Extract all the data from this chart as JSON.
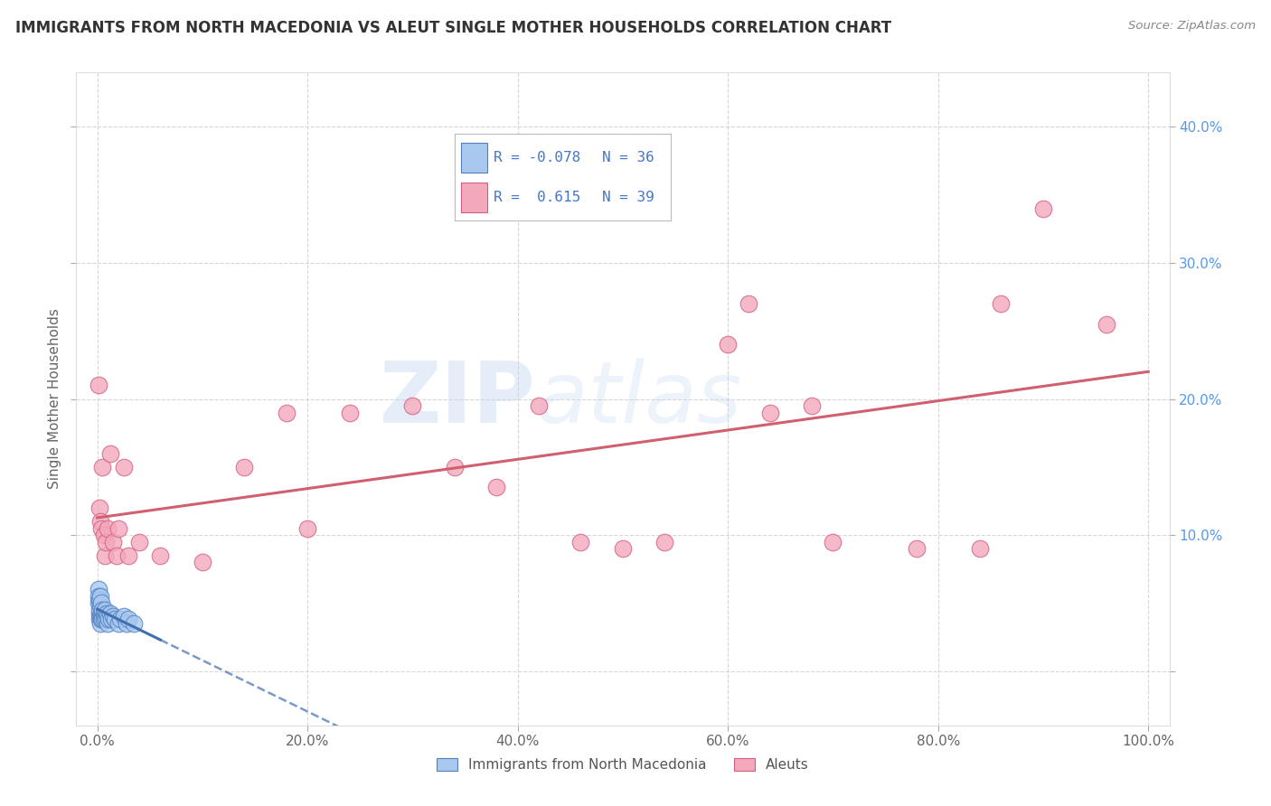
{
  "title": "IMMIGRANTS FROM NORTH MACEDONIA VS ALEUT SINGLE MOTHER HOUSEHOLDS CORRELATION CHART",
  "source": "Source: ZipAtlas.com",
  "ylabel": "Single Mother Households",
  "xlim": [
    -0.02,
    1.02
  ],
  "ylim": [
    -0.04,
    0.44
  ],
  "plot_xlim": [
    0.0,
    1.0
  ],
  "plot_ylim": [
    0.0,
    0.4
  ],
  "x_ticks": [
    0.0,
    0.2,
    0.4,
    0.6,
    0.8,
    1.0
  ],
  "x_tick_labels": [
    "0.0%",
    "20.0%",
    "40.0%",
    "60.0%",
    "80.0%",
    "100.0%"
  ],
  "y_ticks": [
    0.0,
    0.1,
    0.2,
    0.3,
    0.4
  ],
  "y_tick_labels_left": [
    "",
    "",
    "",
    "",
    ""
  ],
  "y_tick_labels_right": [
    "",
    "10.0%",
    "20.0%",
    "30.0%",
    "40.0%"
  ],
  "watermark_zip": "ZIP",
  "watermark_atlas": "atlas",
  "series1_label": "Immigrants from North Macedonia",
  "series2_label": "Aleuts",
  "series1_color": "#A8C8F0",
  "series2_color": "#F4A8BC",
  "series1_edge": "#5080C0",
  "series2_edge": "#D06080",
  "trend1_color": "#4070B0",
  "trend2_color": "#D06070",
  "background_color": "#FFFFFF",
  "grid_color": "#CCCCCC",
  "title_color": "#333333",
  "legend_r1": "R = -0.078",
  "legend_n1": "N = 36",
  "legend_r2": "R =  0.615",
  "legend_n2": "N = 39",
  "series1_x": [
    0.001,
    0.001,
    0.001,
    0.002,
    0.002,
    0.002,
    0.002,
    0.003,
    0.003,
    0.003,
    0.003,
    0.004,
    0.004,
    0.004,
    0.005,
    0.005,
    0.005,
    0.006,
    0.006,
    0.007,
    0.007,
    0.008,
    0.009,
    0.01,
    0.01,
    0.011,
    0.012,
    0.013,
    0.015,
    0.017,
    0.02,
    0.022,
    0.025,
    0.028,
    0.03,
    0.035
  ],
  "series1_y": [
    0.05,
    0.06,
    0.055,
    0.042,
    0.038,
    0.045,
    0.052,
    0.04,
    0.035,
    0.048,
    0.055,
    0.038,
    0.042,
    0.05,
    0.04,
    0.038,
    0.045,
    0.042,
    0.038,
    0.04,
    0.045,
    0.038,
    0.042,
    0.035,
    0.04,
    0.038,
    0.042,
    0.038,
    0.04,
    0.038,
    0.035,
    0.038,
    0.04,
    0.035,
    0.038,
    0.035
  ],
  "series2_x": [
    0.001,
    0.002,
    0.003,
    0.004,
    0.005,
    0.006,
    0.007,
    0.008,
    0.01,
    0.012,
    0.015,
    0.018,
    0.02,
    0.025,
    0.03,
    0.04,
    0.06,
    0.1,
    0.14,
    0.18,
    0.2,
    0.24,
    0.3,
    0.34,
    0.38,
    0.42,
    0.46,
    0.5,
    0.54,
    0.6,
    0.62,
    0.64,
    0.68,
    0.7,
    0.78,
    0.84,
    0.86,
    0.9,
    0.96
  ],
  "series2_y": [
    0.21,
    0.12,
    0.11,
    0.105,
    0.15,
    0.1,
    0.085,
    0.095,
    0.105,
    0.16,
    0.095,
    0.085,
    0.105,
    0.15,
    0.085,
    0.095,
    0.085,
    0.08,
    0.15,
    0.19,
    0.105,
    0.19,
    0.195,
    0.15,
    0.135,
    0.195,
    0.095,
    0.09,
    0.095,
    0.24,
    0.27,
    0.19,
    0.195,
    0.095,
    0.09,
    0.09,
    0.27,
    0.34,
    0.255
  ]
}
